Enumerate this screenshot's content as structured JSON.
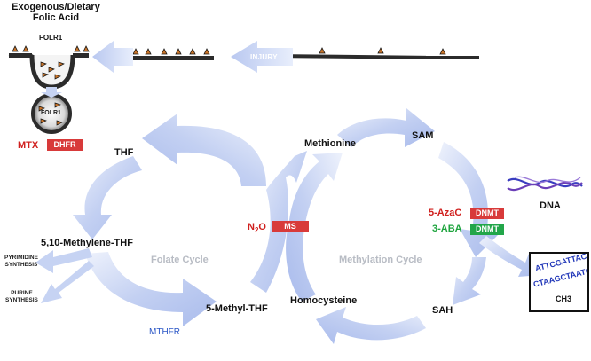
{
  "title": {
    "line1": "Exogenous/Dietary",
    "line2": "Folic Acid"
  },
  "receptor": {
    "folr1_top": "FOLR1",
    "folr1_vesicle": "FOLR1"
  },
  "injury_label": "INJURY",
  "folate_cycle": {
    "label": "Folate Cycle",
    "thf": "THF",
    "methylene_thf": "5,10-Methylene-THF",
    "methyl_thf": "5-Methyl-THF",
    "pyrimidine_synthesis": [
      "PYRIMIDINE",
      "SYNTHESIS"
    ],
    "purine_synthesis": [
      "PURINE",
      "SYNTHESIS"
    ],
    "mthfr": "MTHFR"
  },
  "methylation_cycle": {
    "label": "Methylation Cycle",
    "methionine": "Methionine",
    "sam": "SAM",
    "sah": "SAH",
    "homocysteine": "Homocysteine"
  },
  "inhibitors": {
    "mtx": "MTX",
    "dhfr": "DHFR",
    "n2o_base": "N",
    "n2o_sub": "2",
    "n2o_tail": "O",
    "ms": "MS",
    "azac": "5-AzaC",
    "aba": "3-ABA",
    "dnmt1": "DNMT",
    "dnmt2": "DNMT"
  },
  "dna": {
    "label": "DNA",
    "seq_top": "ATTCGATTAC",
    "seq_bottom": "CTAAGCTAATG",
    "ch3": "CH3"
  },
  "colors": {
    "arrow": "#c6d3f3",
    "arrow_edge": "#e9eefb",
    "inhibitor_red": "#d83a3a",
    "inhibitor_green": "#22a64a",
    "text_red": "#d0201e",
    "text_green": "#1ea43e",
    "mthfr_blue": "#2a56c6",
    "dna_blue": "#2036b8"
  }
}
